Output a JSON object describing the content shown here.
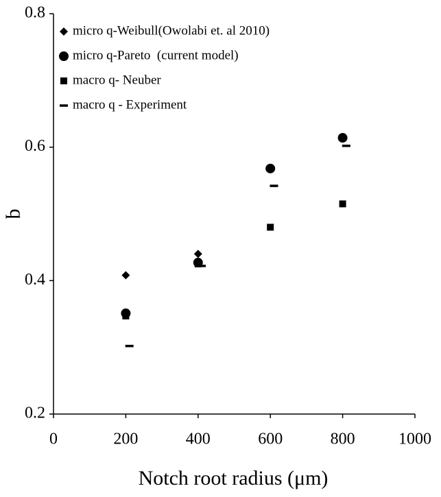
{
  "chart_data": {
    "type": "scatter",
    "xlabel": "Notch root radius (μm)",
    "ylabel": "q",
    "xlim": [
      0,
      1000
    ],
    "xticks": [
      0,
      200,
      400,
      600,
      800,
      1000
    ],
    "ylim": [
      0.2,
      0.8
    ],
    "yticks": [
      0.2,
      0.4,
      0.6,
      0.8
    ],
    "grid": false,
    "legend": "upper left",
    "series": [
      {
        "name": "micro q-Weibull(Owolabi et. al 2010)",
        "color": "#000000",
        "marker": "diamond",
        "x": [
          200,
          400,
          600,
          800
        ],
        "values": [
          0.408,
          0.44,
          0.569,
          0.614
        ]
      },
      {
        "name": "micro q-Pareto  (current model)",
        "color": "#000000",
        "marker": "circle",
        "x": [
          200,
          400,
          600,
          800
        ],
        "values": [
          0.351,
          0.427,
          0.568,
          0.614
        ]
      },
      {
        "name": "macro q- Neuber",
        "color": "#000000",
        "marker": "square",
        "x": [
          200,
          400,
          600,
          800
        ],
        "values": [
          0.347,
          0.425,
          0.48,
          0.515
        ]
      },
      {
        "name": "macro q - Experiment",
        "color": "#000000",
        "marker": "dash",
        "x": [
          210,
          410,
          610,
          810
        ],
        "values": [
          0.302,
          0.422,
          0.542,
          0.602
        ]
      }
    ]
  }
}
